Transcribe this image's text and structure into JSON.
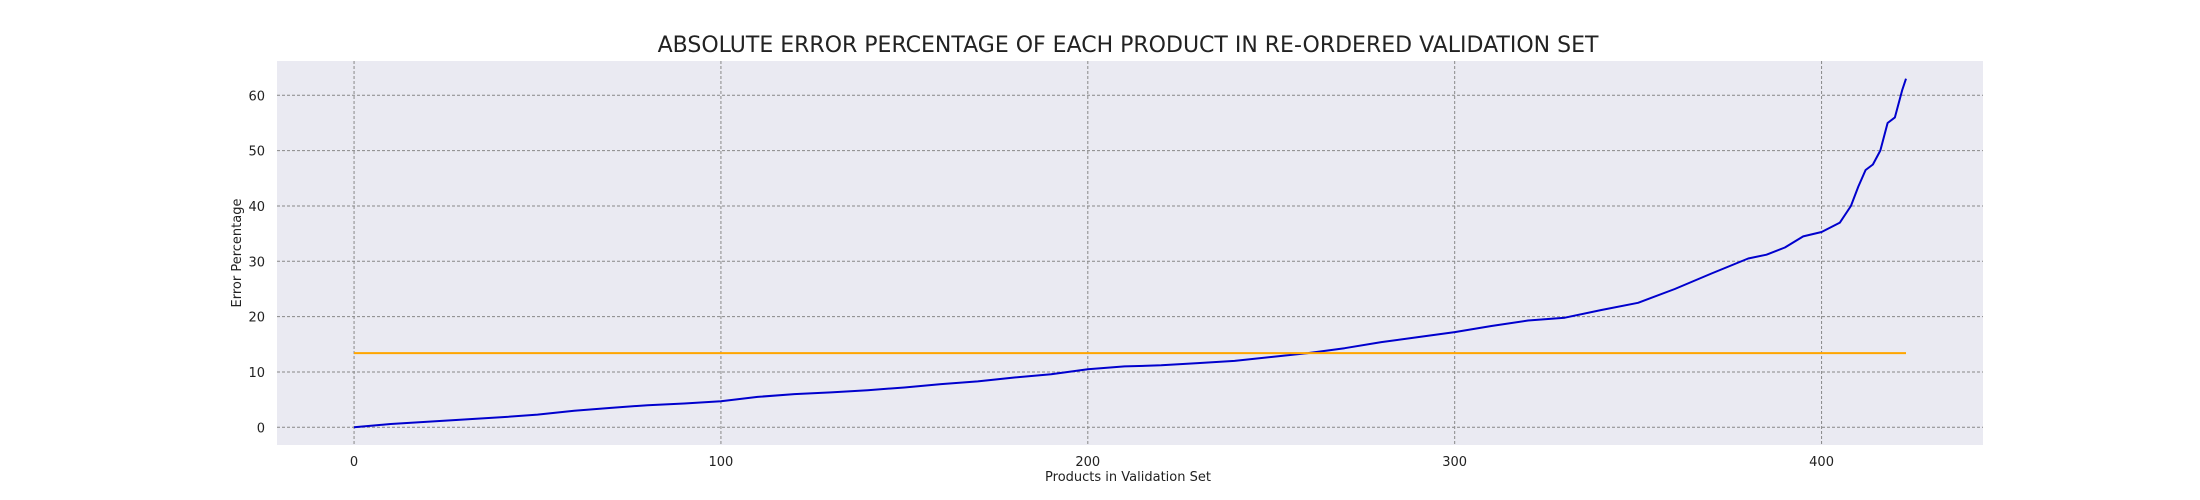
{
  "chart_data": {
    "type": "line",
    "title": "ABSOLUTE ERROR PERCENTAGE OF EACH PRODUCT IN RE-ORDERED VALIDATION SET",
    "xlabel": "Products in Validation Set",
    "ylabel": "Error Percentage",
    "xlim": [
      -21,
      444
    ],
    "ylim": [
      -3.2,
      66.2
    ],
    "xticks": [
      0,
      100,
      200,
      300,
      400
    ],
    "yticks": [
      0,
      10,
      20,
      30,
      40,
      50,
      60
    ],
    "xtick_labels": [
      "0",
      "100",
      "200",
      "300",
      "400"
    ],
    "ytick_labels": [
      "0",
      "10",
      "20",
      "30",
      "40",
      "50",
      "60"
    ],
    "grid": true,
    "background": "#eaeaf2",
    "series": [
      {
        "color": "#0000cd",
        "x": [
          0,
          5,
          10,
          20,
          30,
          40,
          50,
          60,
          70,
          80,
          90,
          100,
          110,
          120,
          130,
          140,
          150,
          160,
          170,
          180,
          190,
          200,
          210,
          220,
          230,
          240,
          250,
          260,
          270,
          280,
          290,
          300,
          310,
          320,
          330,
          340,
          350,
          360,
          370,
          380,
          385,
          390,
          395,
          400,
          405,
          408,
          410,
          412,
          414,
          416,
          418,
          420,
          422,
          423
        ],
        "y": [
          0.0,
          0.3,
          0.6,
          1.0,
          1.4,
          1.8,
          2.3,
          3.0,
          3.5,
          4.0,
          4.3,
          4.7,
          5.5,
          6.0,
          6.3,
          6.7,
          7.2,
          7.8,
          8.3,
          9.0,
          9.6,
          10.5,
          11.0,
          11.2,
          11.6,
          12.0,
          12.7,
          13.4,
          14.3,
          15.4,
          16.3,
          17.2,
          18.3,
          19.3,
          19.8,
          21.2,
          22.5,
          25.0,
          27.8,
          30.5,
          31.2,
          32.5,
          34.5,
          35.3,
          37.0,
          40.0,
          43.5,
          46.5,
          47.5,
          50.0,
          55.0,
          56.0,
          61.0,
          63.0
        ]
      },
      {
        "color": "#ffa500",
        "x": [
          0,
          423
        ],
        "y": [
          13.4,
          13.4
        ]
      }
    ]
  }
}
